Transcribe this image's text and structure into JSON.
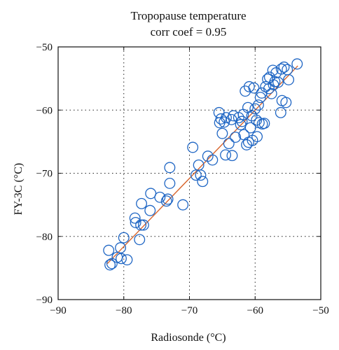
{
  "chart_data": {
    "type": "scatter",
    "title": "Tropopause temperature",
    "subtitle": "corr coef = 0.95",
    "xlabel": "Radiosonde (°C)",
    "ylabel": "FY-3C (°C)",
    "xlim": [
      -90,
      -50
    ],
    "ylim": [
      -90,
      -50
    ],
    "xticks": [
      -90,
      -80,
      -70,
      -60,
      -50
    ],
    "yticks": [
      -90,
      -80,
      -70,
      -60,
      -50
    ],
    "xtick_labels": [
      "−90",
      "−80",
      "−70",
      "−60",
      "−50"
    ],
    "ytick_labels": [
      "−90",
      "−80",
      "−70",
      "−60",
      "−50"
    ],
    "grid": true,
    "grid_style": "dotted",
    "marker_color": "#1f66c4",
    "line_color": "#d8632a",
    "fit_line": {
      "x": [
        -82.5,
        -53.5
      ],
      "y": [
        -84.3,
        -53.0
      ]
    },
    "points": [
      [
        -82.3,
        -82.2
      ],
      [
        -82.1,
        -84.5
      ],
      [
        -81.8,
        -84.3
      ],
      [
        -81.0,
        -83.3
      ],
      [
        -80.4,
        -83.5
      ],
      [
        -80.5,
        -81.8
      ],
      [
        -80.0,
        -80.2
      ],
      [
        -79.5,
        -83.7
      ],
      [
        -78.3,
        -77.1
      ],
      [
        -78.2,
        -77.8
      ],
      [
        -77.6,
        -80.5
      ],
      [
        -77.4,
        -78.2
      ],
      [
        -77.0,
        -78.2
      ],
      [
        -77.3,
        -74.8
      ],
      [
        -76.0,
        -75.9
      ],
      [
        -75.9,
        -73.2
      ],
      [
        -74.5,
        -73.8
      ],
      [
        -73.5,
        -74.4
      ],
      [
        -73.3,
        -74.1
      ],
      [
        -73.0,
        -71.6
      ],
      [
        -73.0,
        -69.1
      ],
      [
        -71.0,
        -75.0
      ],
      [
        -69.5,
        -65.9
      ],
      [
        -69.0,
        -70.3
      ],
      [
        -68.6,
        -68.7
      ],
      [
        -68.3,
        -70.3
      ],
      [
        -68.0,
        -71.3
      ],
      [
        -67.2,
        -67.3
      ],
      [
        -66.5,
        -67.9
      ],
      [
        -65.5,
        -60.4
      ],
      [
        -65.4,
        -62.0
      ],
      [
        -65.2,
        -61.4
      ],
      [
        -65.0,
        -63.7
      ],
      [
        -64.7,
        -61.9
      ],
      [
        -64.5,
        -67.1
      ],
      [
        -64.4,
        -61.2
      ],
      [
        -64.0,
        -65.3
      ],
      [
        -63.6,
        -61.5
      ],
      [
        -63.5,
        -67.2
      ],
      [
        -63.3,
        -60.9
      ],
      [
        -63.0,
        -64.3
      ],
      [
        -62.5,
        -61.2
      ],
      [
        -62.2,
        -62.3
      ],
      [
        -62.0,
        -61.8
      ],
      [
        -61.8,
        -60.7
      ],
      [
        -61.7,
        -63.9
      ],
      [
        -61.5,
        -57.0
      ],
      [
        -61.3,
        -65.5
      ],
      [
        -61.1,
        -59.6
      ],
      [
        -61.0,
        -65.1
      ],
      [
        -60.9,
        -56.3
      ],
      [
        -60.7,
        -62.8
      ],
      [
        -60.5,
        -60.9
      ],
      [
        -60.4,
        -64.8
      ],
      [
        -60.2,
        -56.5
      ],
      [
        -60.0,
        -59.8
      ],
      [
        -59.8,
        -61.6
      ],
      [
        -59.7,
        -64.2
      ],
      [
        -59.5,
        -59.2
      ],
      [
        -59.4,
        -62.0
      ],
      [
        -59.2,
        -58.0
      ],
      [
        -59.0,
        -57.3
      ],
      [
        -58.9,
        -62.2
      ],
      [
        -58.6,
        -62.1
      ],
      [
        -58.4,
        -56.3
      ],
      [
        -58.1,
        -55.1
      ],
      [
        -57.9,
        -56.6
      ],
      [
        -57.8,
        -54.8
      ],
      [
        -57.5,
        -57.4
      ],
      [
        -57.3,
        -53.7
      ],
      [
        -57.2,
        -56.0
      ],
      [
        -57.0,
        -55.5
      ],
      [
        -56.8,
        -54.1
      ],
      [
        -56.5,
        -55.6
      ],
      [
        -56.1,
        -60.4
      ],
      [
        -56.0,
        -53.5
      ],
      [
        -55.9,
        -58.5
      ],
      [
        -55.6,
        -53.2
      ],
      [
        -55.3,
        -58.8
      ],
      [
        -55.1,
        -53.6
      ],
      [
        -54.9,
        -55.2
      ],
      [
        -53.6,
        -52.7
      ]
    ]
  }
}
